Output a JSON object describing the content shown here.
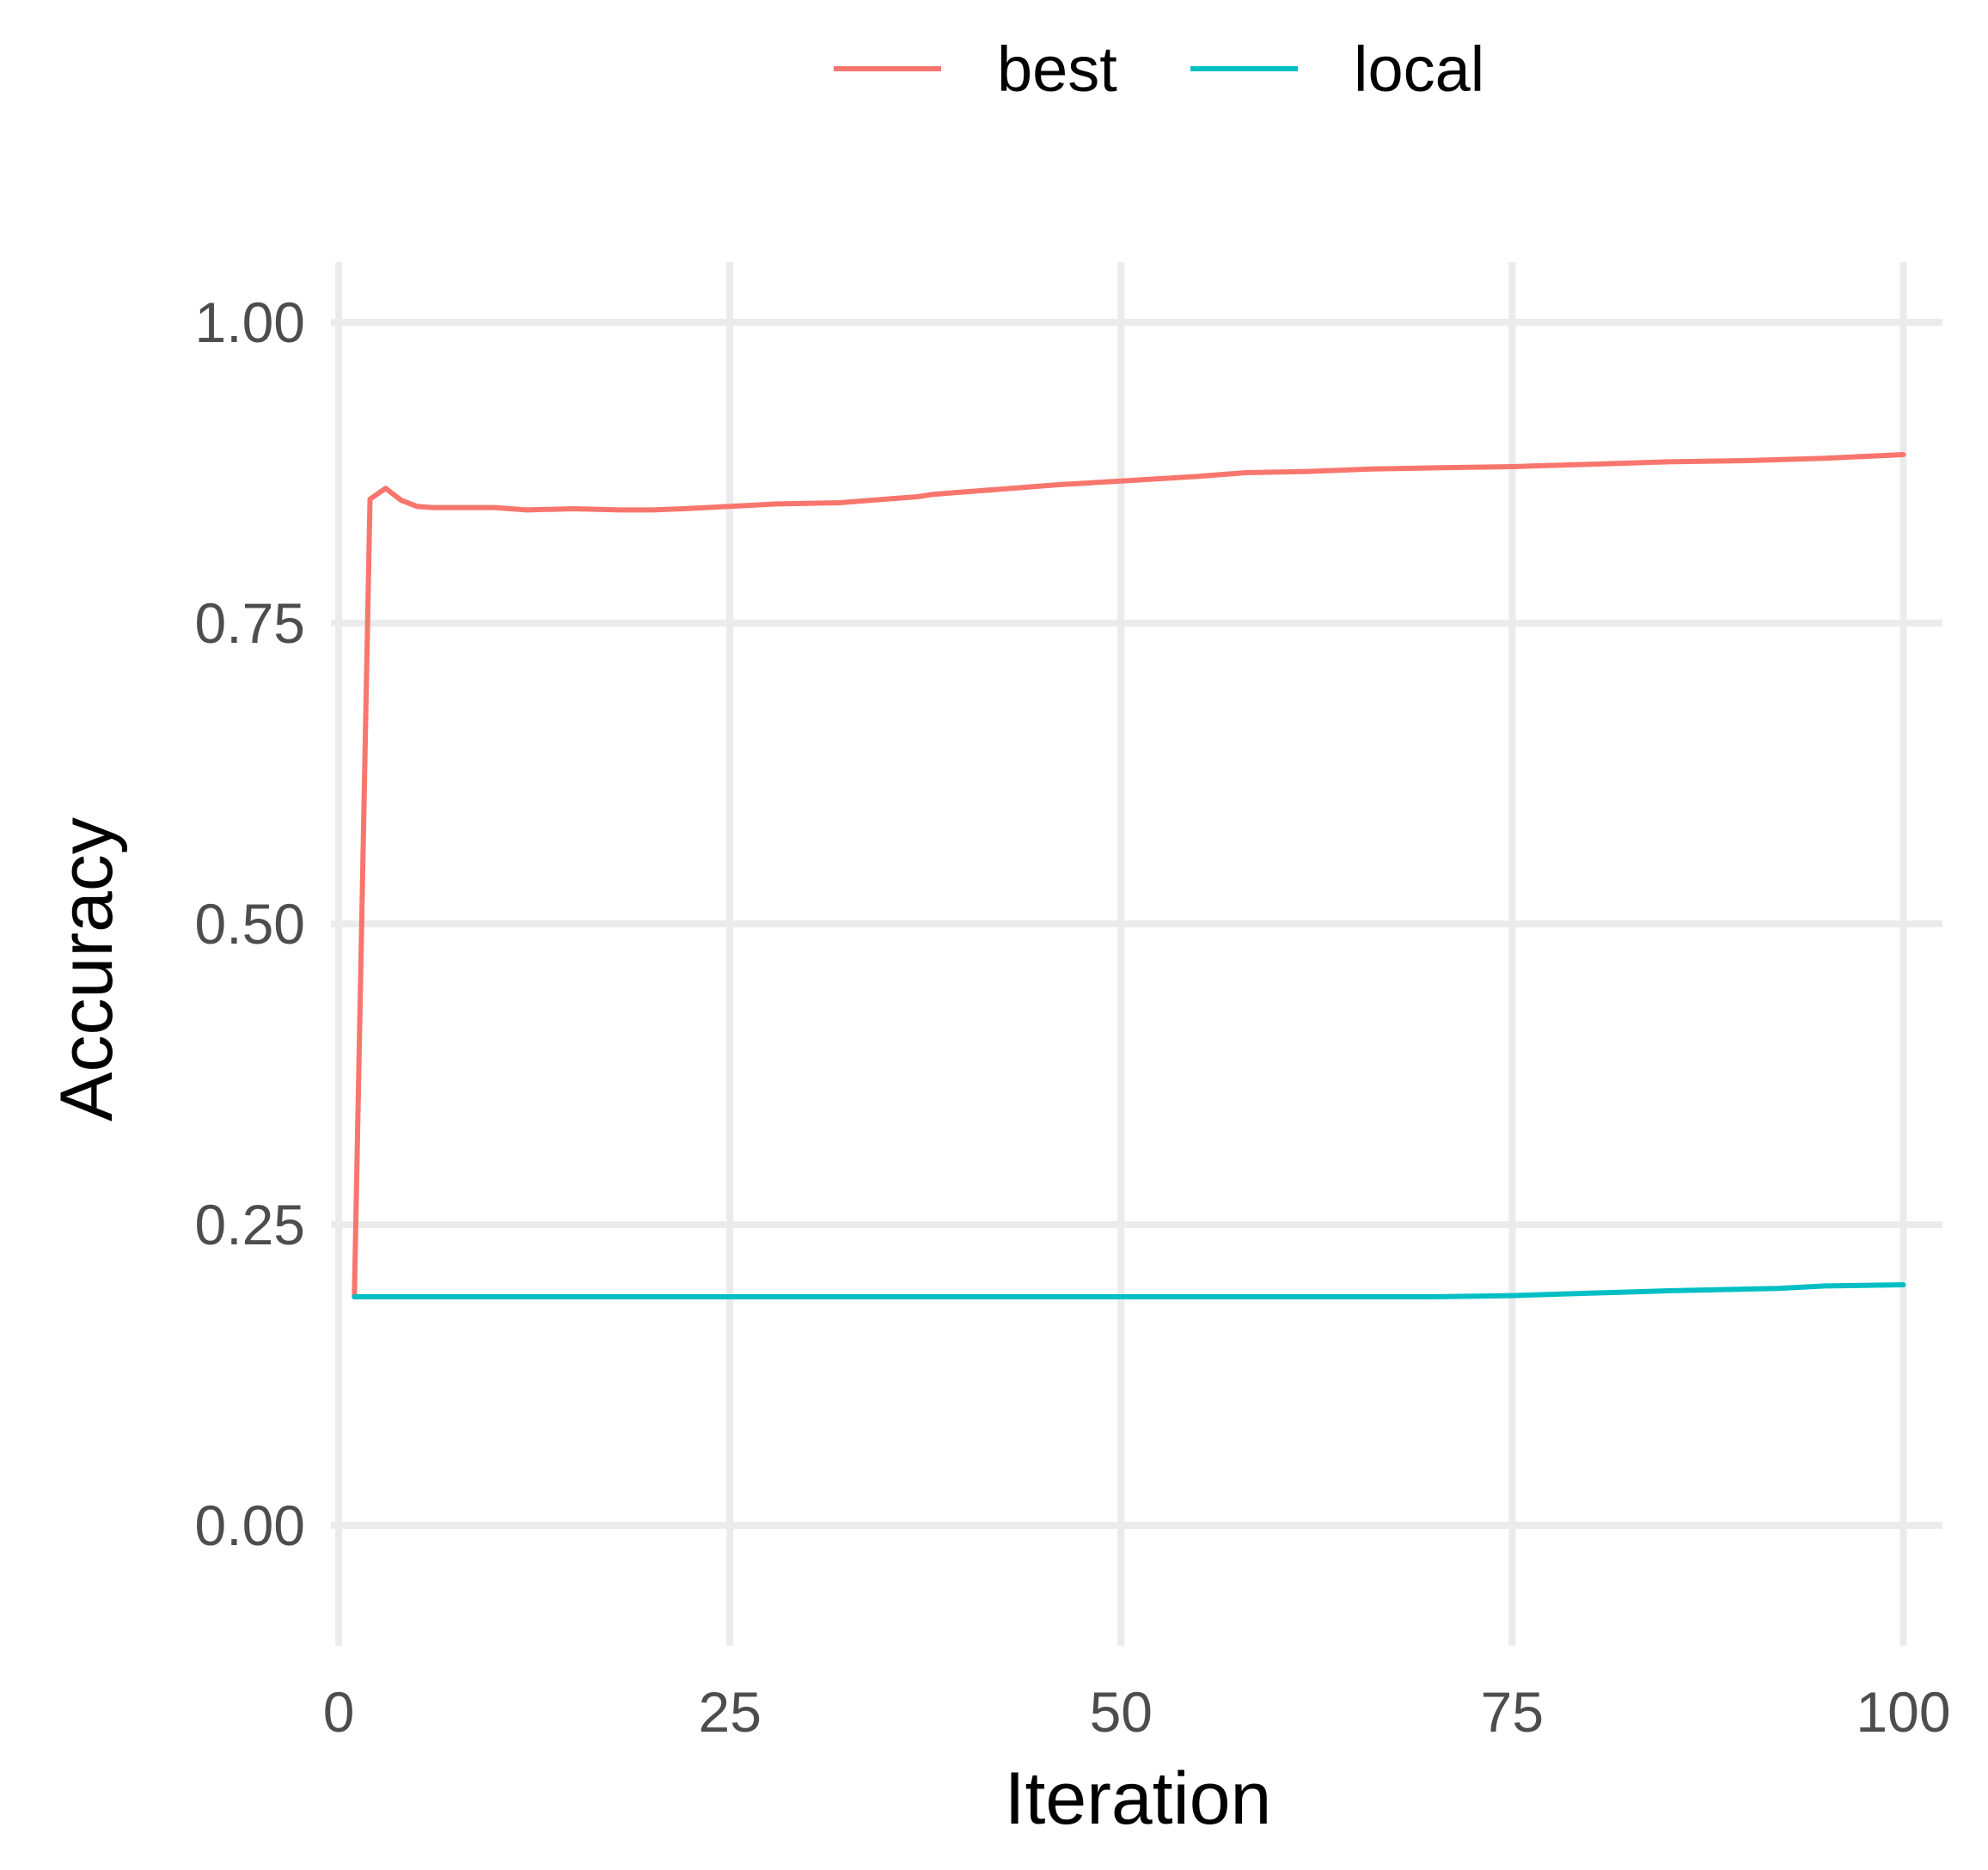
{
  "chart_data": {
    "type": "line",
    "title": "",
    "xlabel": "Iteration",
    "ylabel": "Accuracy",
    "xlim": [
      -0.5,
      102.5
    ],
    "ylim": [
      -0.1,
      1.05
    ],
    "x_ticks": [
      0,
      25,
      50,
      75,
      100
    ],
    "x_tick_labels": [
      "0",
      "25",
      "50",
      "75",
      "100"
    ],
    "y_ticks": [
      0,
      0.25,
      0.5,
      0.75,
      1
    ],
    "y_tick_labels": [
      "0.00",
      "0.25",
      "0.50",
      "0.75",
      "1.00"
    ],
    "grid": true,
    "legend_position": "top",
    "series": [
      {
        "name": "best",
        "color": "#f8766d",
        "x": [
          1,
          2,
          3,
          4,
          5,
          6,
          8,
          10,
          12,
          15,
          18,
          20,
          22,
          25,
          28,
          32,
          35,
          37,
          38,
          40,
          43,
          46,
          50,
          55,
          58,
          62,
          66,
          70,
          75,
          80,
          85,
          90,
          95,
          100
        ],
        "y": [
          0.19,
          0.853,
          0.862,
          0.852,
          0.847,
          0.846,
          0.846,
          0.846,
          0.844,
          0.845,
          0.844,
          0.844,
          0.845,
          0.847,
          0.849,
          0.85,
          0.853,
          0.855,
          0.857,
          0.859,
          0.862,
          0.865,
          0.868,
          0.872,
          0.875,
          0.876,
          0.878,
          0.879,
          0.88,
          0.882,
          0.884,
          0.885,
          0.887,
          0.89
        ]
      },
      {
        "name": "local",
        "color": "#00bfc4",
        "x": [
          1,
          10,
          20,
          30,
          40,
          50,
          60,
          70,
          75,
          80,
          85,
          92,
          95,
          100
        ],
        "y": [
          0.19,
          0.19,
          0.19,
          0.19,
          0.19,
          0.19,
          0.19,
          0.19,
          0.191,
          0.193,
          0.195,
          0.197,
          0.199,
          0.2
        ]
      }
    ]
  }
}
